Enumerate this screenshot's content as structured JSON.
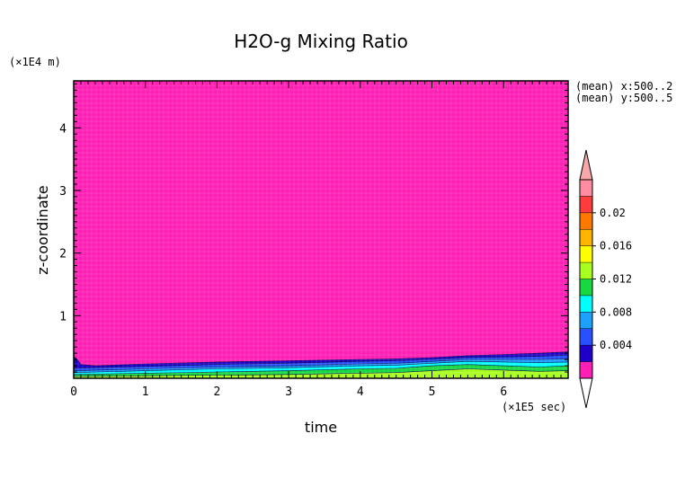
{
  "chart_data": {
    "type": "heatmap",
    "title": "H2O-g Mixing Ratio",
    "xlabel": "time",
    "ylabel": "z-coordinate",
    "x_unit_label": "(×1E5 sec)",
    "y_unit_label": "(×1E4 m)",
    "xlim": [
      0,
      6.9
    ],
    "ylim": [
      0,
      4.75
    ],
    "x_ticks": [
      "0",
      "1",
      "2",
      "3",
      "4",
      "5",
      "6"
    ],
    "y_ticks": [
      "1",
      "2",
      "3",
      "4"
    ],
    "mean_notes": [
      "(mean) x:500..2",
      "(mean) y:500..5"
    ],
    "colorbar": {
      "levels": [
        0,
        0.002,
        0.004,
        0.006,
        0.008,
        0.01,
        0.012,
        0.014,
        0.016,
        0.018,
        0.02,
        0.022,
        0.024
      ],
      "colors": [
        "#ff1fb4",
        "#1e00c8",
        "#2850ff",
        "#1ea0ff",
        "#00ffff",
        "#17d840",
        "#a8ff1e",
        "#ffff00",
        "#ffb400",
        "#ff7800",
        "#ff3c3c",
        "#ff8ca0"
      ],
      "tick_labels": [
        "0.004",
        "0.008",
        "0.012",
        "0.016",
        "0.02"
      ],
      "tick_values": [
        0.004,
        0.008,
        0.012,
        0.016,
        0.02
      ],
      "extend": "both"
    },
    "layers": [
      {
        "name": "",
        "color": "#a8ff1e",
        "x": [
          0,
          1,
          2,
          3,
          4,
          4.5,
          5,
          5.5,
          6,
          6.5,
          6.9
        ],
        "y": [
          0.03,
          0.04,
          0.05,
          0.06,
          0.08,
          0.09,
          0.12,
          0.15,
          0.13,
          0.11,
          0.12
        ]
      },
      {
        "name": "",
        "color": "#17d840",
        "x": [
          0,
          1,
          2,
          3,
          4,
          4.5,
          5,
          5.5,
          6,
          6.5,
          6.9
        ],
        "y": [
          0.06,
          0.08,
          0.1,
          0.12,
          0.15,
          0.16,
          0.2,
          0.22,
          0.2,
          0.18,
          0.2
        ]
      },
      {
        "name": "",
        "color": "#00ffff",
        "x": [
          0,
          1,
          2,
          3,
          4,
          4.5,
          5,
          5.5,
          6,
          6.5,
          6.9
        ],
        "y": [
          0.09,
          0.12,
          0.15,
          0.17,
          0.2,
          0.21,
          0.24,
          0.27,
          0.26,
          0.25,
          0.26
        ]
      },
      {
        "name": "",
        "color": "#1ea0ff",
        "x": [
          0,
          1,
          2,
          3,
          4,
          4.5,
          5,
          5.5,
          6,
          6.5,
          6.9
        ],
        "y": [
          0.12,
          0.15,
          0.18,
          0.2,
          0.23,
          0.24,
          0.27,
          0.3,
          0.3,
          0.3,
          0.31
        ]
      },
      {
        "name": "",
        "color": "#2850ff",
        "x": [
          0,
          1,
          2,
          3,
          4,
          4.5,
          5,
          5.5,
          6,
          6.5,
          6.9
        ],
        "y": [
          0.16,
          0.19,
          0.22,
          0.24,
          0.27,
          0.28,
          0.3,
          0.33,
          0.34,
          0.35,
          0.37
        ]
      },
      {
        "name": "",
        "color": "#1e00c8",
        "x": [
          0,
          0.05,
          0.1,
          0.3,
          1,
          2,
          3,
          4,
          4.5,
          5,
          5.5,
          6,
          6.5,
          6.9
        ],
        "y": [
          0.35,
          0.3,
          0.22,
          0.2,
          0.23,
          0.26,
          0.28,
          0.3,
          0.31,
          0.33,
          0.36,
          0.38,
          0.4,
          0.42
        ]
      }
    ]
  }
}
